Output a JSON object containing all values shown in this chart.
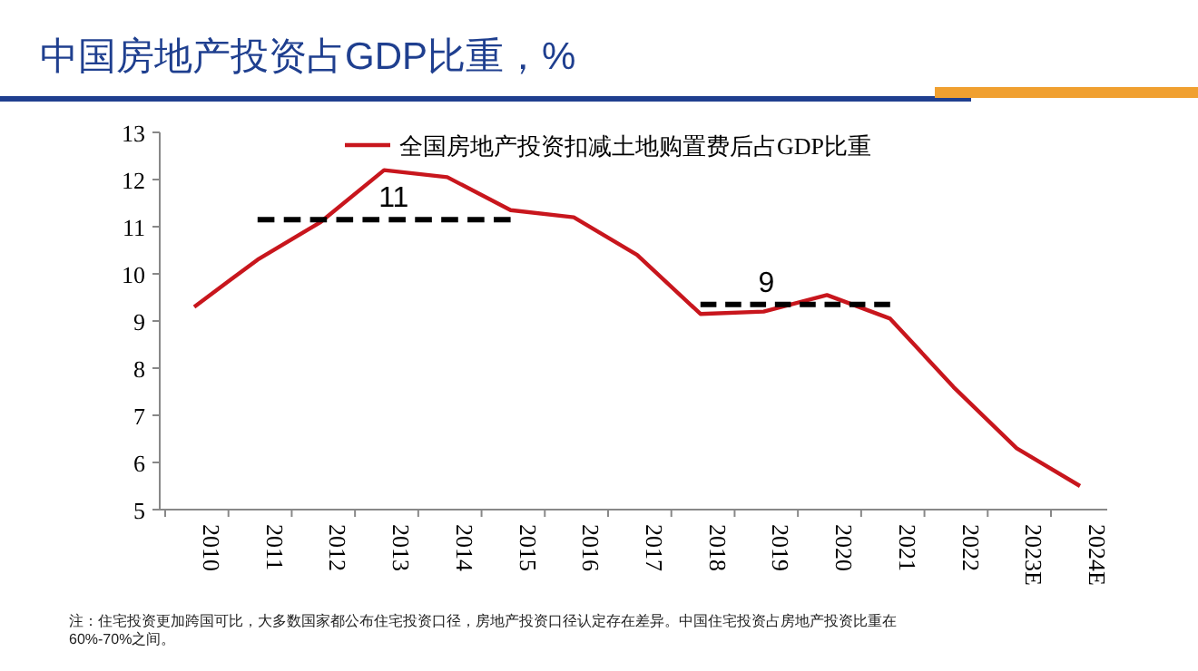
{
  "chart_data": {
    "type": "line",
    "title": "中国房地产投资占GDP比重，%",
    "categories": [
      "2010",
      "2011",
      "2012",
      "2013",
      "2014",
      "2015",
      "2016",
      "2017",
      "2018",
      "2019",
      "2020",
      "2021",
      "2022",
      "2023E",
      "2024E"
    ],
    "series": [
      {
        "name": "全国房地产投资扣减土地购置费后占GDP比重",
        "color": "#c8161d",
        "values": [
          9.3,
          10.3,
          11.1,
          12.2,
          12.05,
          11.35,
          11.2,
          10.4,
          9.15,
          9.2,
          9.55,
          9.05,
          7.6,
          6.3,
          5.5
        ]
      },
      {
        "color": "#000000",
        "line_style": "dashed",
        "values": [
          null,
          11.15,
          11.15,
          11.15,
          11.15,
          11.15,
          null,
          null,
          null,
          null,
          null,
          null,
          null,
          null,
          null
        ]
      },
      {
        "color": "#000000",
        "line_style": "dashed",
        "values": [
          null,
          null,
          null,
          null,
          null,
          null,
          null,
          null,
          9.35,
          9.35,
          9.35,
          9.35,
          null,
          null,
          null
        ]
      }
    ],
    "ylim": [
      5,
      13
    ],
    "yticks": [
      5,
      6,
      7,
      8,
      9,
      10,
      11,
      12,
      13
    ],
    "grid": false,
    "legend": "top",
    "marker": "none",
    "annotations": [
      {
        "text": "11",
        "x": "2013",
        "y": 11.15
      },
      {
        "text": "9",
        "x": "2019",
        "y": 9.35
      },
      "注：住宅投资更加跨国可比，大多数国家都公布住宅投资口径，房地产投资口径认定存在差异。中国住宅投资占房地产投资比重在60%-70%之间。"
    ]
  }
}
